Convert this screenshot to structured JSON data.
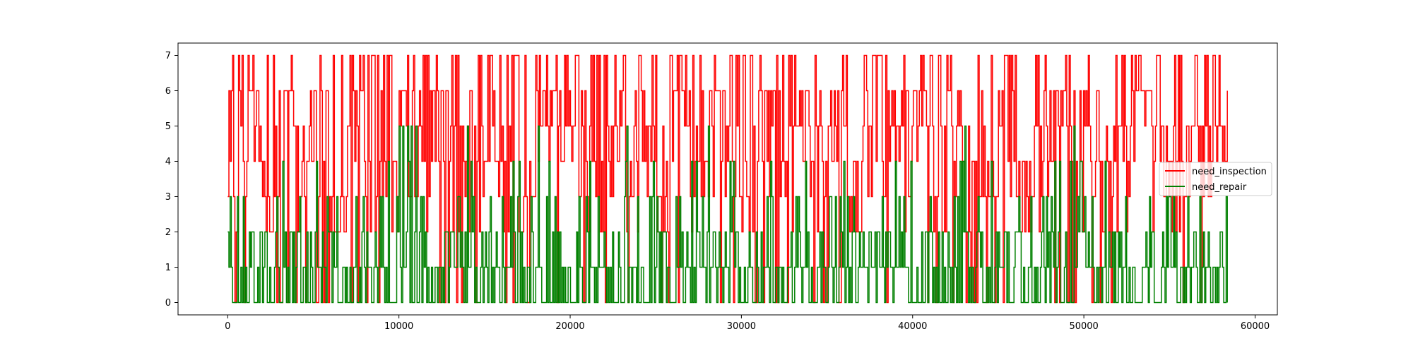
{
  "chart_data": {
    "type": "line",
    "title": "",
    "xlabel": "",
    "ylabel": "",
    "xlim": [
      -2900,
      61300
    ],
    "ylim": [
      -0.35,
      7.35
    ],
    "x_ticks": [
      0,
      10000,
      20000,
      30000,
      40000,
      50000,
      60000
    ],
    "x_tick_labels": [
      "0",
      "10000",
      "20000",
      "30000",
      "40000",
      "50000",
      "60000"
    ],
    "y_ticks": [
      0,
      1,
      2,
      3,
      4,
      5,
      6,
      7
    ],
    "y_tick_labels": [
      "0",
      "1",
      "2",
      "3",
      "4",
      "5",
      "6",
      "7"
    ],
    "grid": false,
    "legend": {
      "position": "center-right"
    },
    "x_range": [
      0,
      58400
    ],
    "series": [
      {
        "name": "need_inspection",
        "color": "#ff0000",
        "min": 0,
        "max": 7,
        "typical_range": [
          2,
          6
        ],
        "approx_values_per_1000_steps": [
          4,
          5,
          3,
          6,
          4,
          5,
          2,
          6,
          4,
          3,
          5,
          4,
          6,
          3,
          4,
          5,
          4,
          2,
          5,
          6,
          4,
          3,
          5,
          4,
          5,
          3,
          6,
          4,
          5,
          4,
          3,
          5,
          4,
          6,
          4,
          5,
          3,
          4,
          5,
          4,
          6,
          3,
          5,
          4,
          4,
          5,
          3,
          4,
          6,
          4,
          5,
          3,
          4,
          5,
          4,
          3,
          5,
          4,
          5
        ]
      },
      {
        "name": "need_repair",
        "color": "#008000",
        "min": 0,
        "max": 5,
        "typical_range": [
          0,
          2
        ],
        "approx_values_per_1000_steps": [
          1,
          0,
          2,
          1,
          0,
          1,
          2,
          1,
          0,
          1,
          3,
          1,
          0,
          1,
          2,
          0,
          1,
          1,
          2,
          0,
          1,
          1,
          0,
          2,
          1,
          1,
          0,
          1,
          2,
          1,
          0,
          1,
          1,
          2,
          0,
          1,
          1,
          0,
          2,
          1,
          1,
          0,
          1,
          2,
          1,
          1,
          0,
          1,
          1,
          2,
          0,
          1,
          1,
          0,
          2,
          1,
          1,
          0,
          1
        ]
      }
    ]
  }
}
